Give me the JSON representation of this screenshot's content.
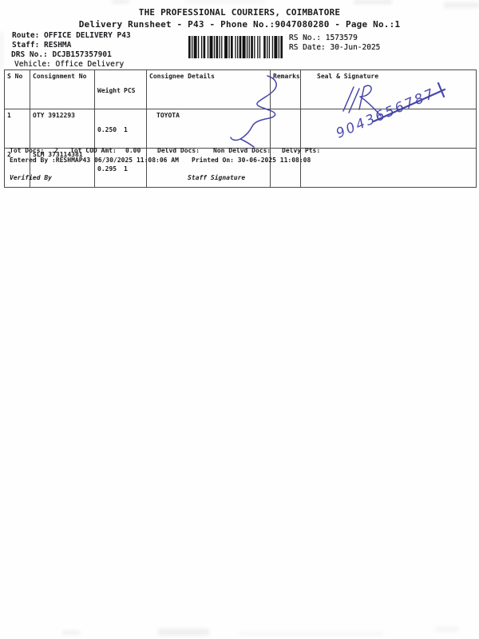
{
  "colors": {
    "ink": "#3d3da8",
    "text": "#1b1b1f",
    "table_line": "#4b4b4b"
  },
  "header": {
    "title": "THE PROFESSIONAL COURIERS, COIMBATORE",
    "subtitle": "Delivery Runsheet - P43 - Phone No.:9047080280 - Page No.:1"
  },
  "info": {
    "route": "Route: OFFICE DELIVERY P43",
    "staff": "Staff: RESHMA",
    "drs": "DRS No.: DCJB157357901",
    "vehicle": "Vehicle: Office Delivery",
    "rs_no": "RS No.: 1573579",
    "rs_date": "RS Date: 30-Jun-2025"
  },
  "icons": {
    "barcode": "barcode-image"
  },
  "table": {
    "headers": {
      "sno": "S No",
      "consignment": "Consignment No",
      "weight": "Weight",
      "pcs": "PCS",
      "consignee": "Consignee Details",
      "remarks": "Remarks",
      "seal": "Seal & Signature"
    },
    "rows": [
      {
        "sno": "1",
        "consignment": "OTY 3912293",
        "weight": "0.250",
        "pcs": "1",
        "consignee": "TOYOTA",
        "remarks": "",
        "seal": ""
      },
      {
        "sno": "2",
        "consignment": "SLM 373114381",
        "weight": "0.295",
        "pcs": "1",
        "consignee": "",
        "remarks": "",
        "seal": ""
      }
    ]
  },
  "handwriting": {
    "ink_color": "#3d3da8",
    "phone_number": "9043656787",
    "monogram": "NR"
  },
  "totals": {
    "tot_docs_label": "Tot Docs:",
    "tot_docs_value": "2",
    "tot_cod_label": "Tot COD Amt:",
    "tot_cod_value": "0.00",
    "delvd_label": "Delvd Docs:",
    "non_delvd_label": "Non Delvd Docs:",
    "delvy_label": "Delvy Pts:"
  },
  "footer": {
    "entered": "Entered By :RESHMAP43 06/30/2025 11:08:06 AM",
    "printed": "Printed On: 30-06-2025 11:08:08",
    "verified": "Verified By",
    "staff_sig": "Staff Signature"
  }
}
